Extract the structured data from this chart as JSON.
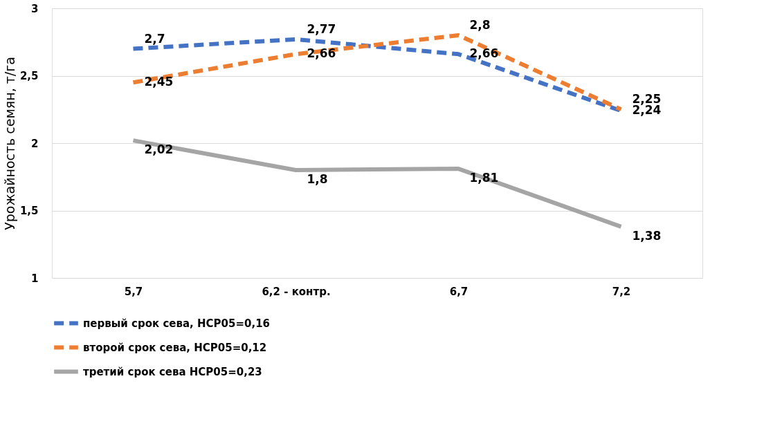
{
  "chart_data": {
    "type": "line",
    "ylabel": "Урожайность семян, т/га",
    "categories": [
      "5,7",
      "6,2 - контр.",
      "6,7",
      "7,2"
    ],
    "series": [
      {
        "name": "первый срок сева, НСР05=0,16",
        "color": "#4472c4",
        "line_style": "dashed",
        "values": [
          2.7,
          2.77,
          2.66,
          2.24
        ],
        "value_labels": [
          "2,7",
          "2,77",
          "2,66",
          "2,24"
        ]
      },
      {
        "name": "второй срок сева, НСР05=0,12",
        "color": "#ed7d31",
        "line_style": "dashed",
        "values": [
          2.45,
          2.66,
          2.8,
          2.25
        ],
        "value_labels": [
          "2,45",
          "2,66",
          "2,8",
          "2,25"
        ]
      },
      {
        "name": "третий срок сева НСР05=0,23",
        "color": "#a5a5a5",
        "line_style": "solid",
        "values": [
          2.02,
          1.8,
          1.81,
          1.38
        ],
        "value_labels": [
          "2,02",
          "1,8",
          "1,81",
          "1,38"
        ]
      }
    ],
    "ylim": [
      1,
      3
    ],
    "yticks": [
      1,
      {
        "value": 1.5,
        "label": "1,5"
      },
      2,
      {
        "value": 2.5,
        "label": "2,5"
      },
      3
    ],
    "grid": "y",
    "legend": "bottom",
    "marker": "none"
  }
}
